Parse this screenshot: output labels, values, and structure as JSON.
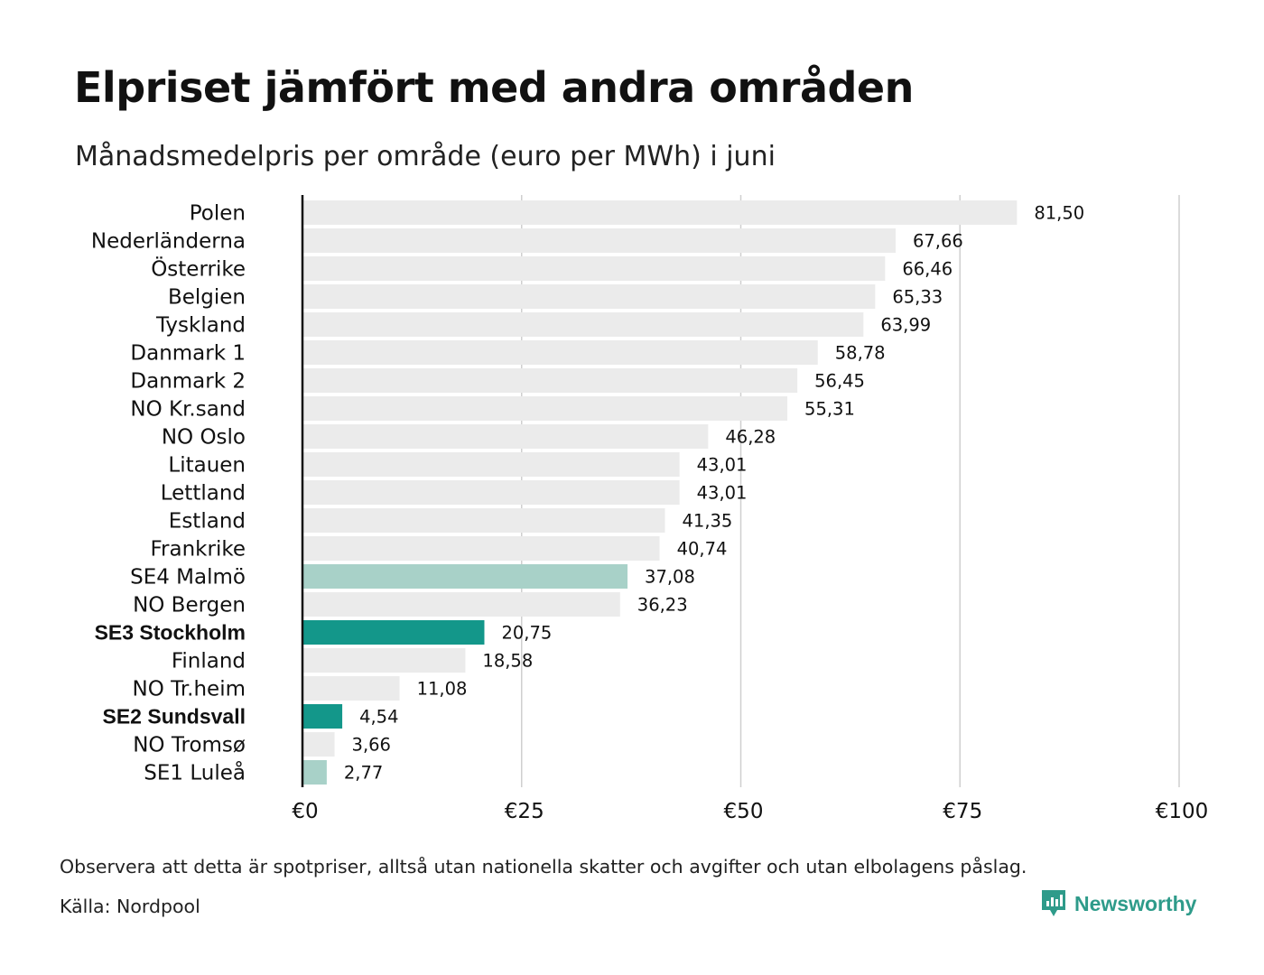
{
  "header": {
    "title": "Elpriset jämfört med andra områden",
    "subtitle": "Månadsmedelpris per område (euro per MWh) i juni"
  },
  "footer": {
    "note": "Observera att detta är spotpriser, alltså utan nationella skatter och avgifter och utan elbolagens påslag.",
    "source": "Källa: Nordpool",
    "brand": "Newsworthy"
  },
  "colors": {
    "default_bar": "#ebebeb",
    "light_highlight": "#a8d1c8",
    "dark_highlight": "#13978a",
    "gridline": "#cfcfcf",
    "axis": "#111111",
    "brand": "#2e9b8a"
  },
  "chart_data": {
    "type": "bar",
    "orientation": "horizontal",
    "xlim": [
      0,
      100
    ],
    "xticks": [
      0,
      25,
      50,
      75,
      100
    ],
    "xtick_labels": [
      "€0",
      "€25",
      "€50",
      "€75",
      "€100"
    ],
    "grid": true,
    "categories": [
      "Polen",
      "Nederländerna",
      "Österrike",
      "Belgien",
      "Tyskland",
      "Danmark  1",
      "Danmark  2",
      "NO Kr.sand",
      "NO Oslo",
      "Litauen",
      "Lettland",
      "Estland",
      "Frankrike",
      "SE4  Malmö",
      "NO Bergen",
      "SE3 Stockholm",
      "Finland",
      "NO Tr.heim",
      "SE2 Sundsvall",
      "NO Tromsø",
      "SE1  Luleå"
    ],
    "values": [
      81.5,
      67.66,
      66.46,
      65.33,
      63.99,
      58.78,
      56.45,
      55.31,
      46.28,
      43.01,
      43.01,
      41.35,
      40.74,
      37.08,
      36.23,
      20.75,
      18.58,
      11.08,
      4.54,
      3.66,
      2.77
    ],
    "value_labels": [
      "81,50",
      "67,66",
      "66,46",
      "65,33",
      "63,99",
      "58,78",
      "56,45",
      "55,31",
      "46,28",
      "43,01",
      "43,01",
      "41,35",
      "40,74",
      "37,08",
      "36,23",
      "20,75",
      "18,58",
      "11,08",
      "4,54",
      "3,66",
      "2,77"
    ],
    "highlight": [
      "none",
      "none",
      "none",
      "none",
      "none",
      "none",
      "none",
      "none",
      "none",
      "none",
      "none",
      "none",
      "none",
      "light",
      "none",
      "dark",
      "none",
      "none",
      "dark",
      "none",
      "light"
    ]
  }
}
